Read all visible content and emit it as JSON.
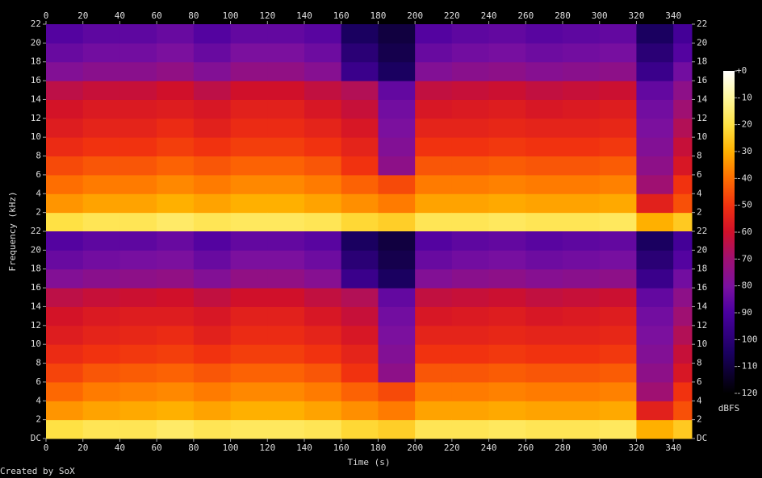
{
  "chart_data": {
    "type": "spectrogram",
    "xlabel": "Time (s)",
    "ylabel": "Frequency (kHz)",
    "colorbar_label": "dBFS",
    "footer": "Created by SoX",
    "xlim": [
      0,
      350
    ],
    "xticks": [
      0,
      20,
      40,
      60,
      80,
      100,
      120,
      140,
      160,
      180,
      200,
      220,
      240,
      260,
      280,
      300,
      320,
      340
    ],
    "time_bins": [
      0,
      20,
      40,
      60,
      80,
      100,
      120,
      140,
      160,
      180,
      200,
      220,
      240,
      260,
      280,
      300,
      320,
      340,
      350
    ],
    "freq_bins": [
      0,
      2,
      4,
      6,
      8,
      10,
      12,
      14,
      16,
      18,
      20,
      22
    ],
    "clim": [
      -120,
      0
    ],
    "cticks": [
      {
        "value": 0,
        "label": "+0"
      },
      -10,
      -20,
      -30,
      -40,
      -50,
      -60,
      -70,
      -80,
      -90,
      -100,
      -110,
      -120
    ],
    "channels": [
      {
        "ylim": [
          0,
          22
        ],
        "yticks": [
          2,
          4,
          6,
          8,
          10,
          12,
          14,
          16,
          18,
          20,
          22
        ],
        "values": [
          [
            -20,
            -34,
            -40,
            -46,
            -52,
            -56,
            -59,
            -64,
            -78,
            -84,
            -88
          ],
          [
            -18,
            -32,
            -38,
            -44,
            -50,
            -54,
            -57,
            -62,
            -76,
            -82,
            -86
          ],
          [
            -18,
            -32,
            -38,
            -44,
            -50,
            -54,
            -57,
            -62,
            -76,
            -82,
            -86
          ],
          [
            -16,
            -30,
            -36,
            -42,
            -48,
            -52,
            -56,
            -60,
            -74,
            -80,
            -84
          ],
          [
            -18,
            -32,
            -38,
            -44,
            -50,
            -55,
            -58,
            -64,
            -78,
            -84,
            -88
          ],
          [
            -17,
            -30,
            -36,
            -42,
            -48,
            -52,
            -55,
            -60,
            -74,
            -80,
            -85
          ],
          [
            -17,
            -30,
            -36,
            -42,
            -48,
            -52,
            -55,
            -60,
            -74,
            -80,
            -85
          ],
          [
            -18,
            -32,
            -38,
            -44,
            -50,
            -54,
            -58,
            -63,
            -77,
            -83,
            -87
          ],
          [
            -22,
            -35,
            -42,
            -50,
            -54,
            -58,
            -62,
            -66,
            -95,
            -100,
            -105
          ],
          [
            -24,
            -38,
            -46,
            -75,
            -78,
            -80,
            -82,
            -85,
            -105,
            -108,
            -110
          ],
          [
            -18,
            -32,
            -38,
            -44,
            -50,
            -54,
            -58,
            -63,
            -78,
            -84,
            -88
          ],
          [
            -18,
            -32,
            -38,
            -44,
            -50,
            -54,
            -57,
            -62,
            -76,
            -82,
            -86
          ],
          [
            -17,
            -31,
            -37,
            -43,
            -49,
            -53,
            -56,
            -61,
            -75,
            -81,
            -85
          ],
          [
            -18,
            -32,
            -38,
            -44,
            -50,
            -54,
            -58,
            -63,
            -77,
            -83,
            -87
          ],
          [
            -18,
            -32,
            -38,
            -44,
            -50,
            -54,
            -57,
            -62,
            -76,
            -82,
            -86
          ],
          [
            -17,
            -31,
            -37,
            -43,
            -49,
            -53,
            -56,
            -61,
            -75,
            -81,
            -85
          ],
          [
            -30,
            -55,
            -70,
            -75,
            -78,
            -80,
            -82,
            -85,
            -95,
            -100,
            -105
          ],
          [
            -25,
            -45,
            -50,
            -58,
            -62,
            -66,
            -70,
            -75,
            -82,
            -88,
            -92
          ]
        ]
      },
      {
        "ylim": [
          0,
          22
        ],
        "yticks": [
          {
            "value": 0,
            "label": "DC"
          },
          2,
          4,
          6,
          8,
          10,
          12,
          14,
          16,
          18,
          20,
          22
        ],
        "values": [
          [
            -20,
            -34,
            -41,
            -47,
            -52,
            -56,
            -59,
            -64,
            -78,
            -84,
            -88
          ],
          [
            -18,
            -32,
            -38,
            -44,
            -50,
            -54,
            -57,
            -62,
            -76,
            -82,
            -86
          ],
          [
            -18,
            -31,
            -37,
            -43,
            -49,
            -53,
            -56,
            -61,
            -75,
            -81,
            -86
          ],
          [
            -16,
            -30,
            -36,
            -42,
            -48,
            -52,
            -56,
            -60,
            -74,
            -80,
            -84
          ],
          [
            -18,
            -32,
            -38,
            -44,
            -50,
            -55,
            -58,
            -63,
            -78,
            -84,
            -88
          ],
          [
            -17,
            -30,
            -36,
            -42,
            -48,
            -52,
            -55,
            -60,
            -74,
            -80,
            -85
          ],
          [
            -17,
            -30,
            -36,
            -42,
            -48,
            -52,
            -55,
            -60,
            -74,
            -80,
            -85
          ],
          [
            -18,
            -32,
            -38,
            -44,
            -50,
            -54,
            -58,
            -63,
            -77,
            -83,
            -87
          ],
          [
            -22,
            -35,
            -42,
            -50,
            -54,
            -58,
            -62,
            -66,
            -95,
            -100,
            -105
          ],
          [
            -24,
            -38,
            -46,
            -75,
            -78,
            -80,
            -82,
            -85,
            -105,
            -108,
            -110
          ],
          [
            -18,
            -32,
            -38,
            -44,
            -50,
            -54,
            -58,
            -63,
            -78,
            -84,
            -88
          ],
          [
            -18,
            -32,
            -38,
            -44,
            -50,
            -54,
            -57,
            -62,
            -76,
            -82,
            -86
          ],
          [
            -17,
            -31,
            -37,
            -43,
            -49,
            -53,
            -56,
            -61,
            -75,
            -81,
            -85
          ],
          [
            -18,
            -32,
            -38,
            -44,
            -50,
            -54,
            -58,
            -63,
            -77,
            -83,
            -87
          ],
          [
            -18,
            -32,
            -38,
            -44,
            -50,
            -54,
            -57,
            -62,
            -76,
            -82,
            -86
          ],
          [
            -17,
            -31,
            -37,
            -43,
            -49,
            -53,
            -56,
            -61,
            -75,
            -81,
            -85
          ],
          [
            -30,
            -55,
            -70,
            -75,
            -78,
            -80,
            -82,
            -85,
            -95,
            -100,
            -105
          ],
          [
            -25,
            -45,
            -50,
            -58,
            -62,
            -66,
            -70,
            -75,
            -82,
            -88,
            -92
          ]
        ]
      }
    ]
  }
}
